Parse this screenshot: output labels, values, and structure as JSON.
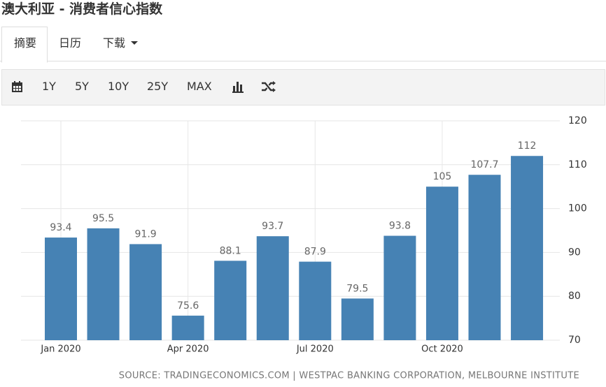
{
  "header": {
    "title": "澳大利亚 - 消费者信心指数"
  },
  "tabs": [
    "摘要",
    "日历",
    "下载"
  ],
  "range_buttons": [
    "1Y",
    "5Y",
    "10Y",
    "25Y",
    "MAX"
  ],
  "chart_data": {
    "type": "bar",
    "categories": [
      "Jan 2020",
      null,
      null,
      "Apr 2020",
      null,
      null,
      "Jul 2020",
      null,
      null,
      "Oct 2020",
      null,
      null
    ],
    "values": [
      93.4,
      95.5,
      91.9,
      75.6,
      88.1,
      93.7,
      87.9,
      79.5,
      93.8,
      105,
      107.7,
      112
    ],
    "color": "#4682b4",
    "ylim": [
      70,
      120
    ],
    "yticks": [
      70,
      80,
      90,
      100,
      110,
      120
    ],
    "grid": true,
    "source": "SOURCE: TRADINGECONOMICS.COM | WESTPAC BANKING CORPORATION, MELBOURNE INSTITUTE"
  }
}
